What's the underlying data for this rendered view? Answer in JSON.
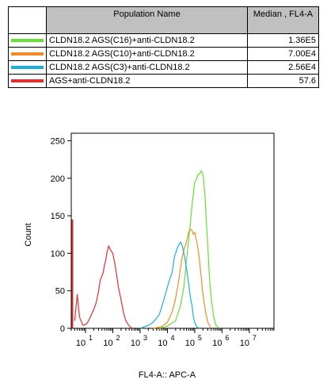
{
  "legend": {
    "header_name": "Population Name",
    "header_value": "Median , FL4-A",
    "rows": [
      {
        "name": "CLDN18.2 AGS(C16)+anti-CLDN18.2",
        "value": "1.36E5",
        "color": "#66e033"
      },
      {
        "name": "CLDN18.2 AGS(C10)+anti-CLDN18.2",
        "value": "7.00E4",
        "color": "#f28c28"
      },
      {
        "name": "CLDN18.2 AGS(C3)+anti-CLDN18.2",
        "value": "2.56E4",
        "color": "#1ab0dd"
      },
      {
        "name": "AGS+anti-CLDN18.2",
        "value": "57.6",
        "color": "#e03030"
      }
    ]
  },
  "chart_data": {
    "type": "line",
    "xlabel": "FL4-A:: APC-A",
    "ylabel": "Count",
    "xscale": "log",
    "xlim": [
      3,
      80000000
    ],
    "ylim": [
      0,
      260
    ],
    "yticks": [
      0,
      50,
      100,
      150,
      200,
      250
    ],
    "xticks": [
      {
        "base": "10",
        "exp": "1",
        "value": 10
      },
      {
        "base": "10",
        "exp": "2",
        "value": 100
      },
      {
        "base": "10",
        "exp": "3",
        "value": 1000
      },
      {
        "base": "10",
        "exp": "4",
        "value": 10000
      },
      {
        "base": "10",
        "exp": "5",
        "value": 100000
      },
      {
        "base": "10",
        "exp": "6",
        "value": 1000000
      },
      {
        "base": "10",
        "exp": "7",
        "value": 10000000
      }
    ],
    "series": [
      {
        "name": "CLDN18.2 AGS(C16)+anti-CLDN18.2",
        "color": "#66e033",
        "x": [
          5000,
          10000,
          20000,
          30000,
          40000,
          50000,
          60000,
          70000,
          80000,
          90000,
          100000,
          115000,
          130000,
          150000,
          170000,
          190000,
          210000,
          240000,
          260000,
          300000,
          350000,
          400000,
          500000,
          600000,
          800000
        ],
        "y": [
          0,
          3,
          10,
          30,
          55,
          90,
          118,
          142,
          165,
          180,
          195,
          198,
          205,
          205,
          210,
          208,
          200,
          175,
          150,
          110,
          65,
          40,
          15,
          4,
          0
        ]
      },
      {
        "name": "CLDN18.2 AGS(C10)+anti-CLDN18.2",
        "color": "#f28c28",
        "x": [
          3000,
          6000,
          10000,
          15000,
          20000,
          25000,
          30000,
          35000,
          40000,
          50000,
          60000,
          70000,
          80000,
          90000,
          100000,
          120000,
          140000,
          160000,
          200000,
          250000,
          300000,
          400000
        ],
        "y": [
          0,
          2,
          8,
          22,
          40,
          60,
          80,
          95,
          105,
          115,
          128,
          132,
          130,
          125,
          128,
          115,
          100,
          80,
          45,
          22,
          8,
          0
        ]
      },
      {
        "name": "CLDN18.2 AGS(C3)+anti-CLDN18.2",
        "color": "#1ab0dd",
        "x": [
          1000,
          2000,
          3000,
          5000,
          7000,
          10000,
          12000,
          15000,
          18000,
          22000,
          25000,
          30000,
          35000,
          40000,
          45000,
          50000,
          60000,
          70000,
          80000,
          90000,
          100000,
          120000,
          150000
        ],
        "y": [
          0,
          4,
          8,
          18,
          35,
          55,
          65,
          75,
          95,
          105,
          110,
          115,
          110,
          100,
          90,
          80,
          60,
          40,
          30,
          15,
          8,
          2,
          0
        ]
      },
      {
        "name": "AGS+anti-CLDN18.2",
        "color": "#e03030",
        "x": [
          4,
          5,
          6,
          8,
          10,
          12,
          15,
          20,
          25,
          30,
          35,
          40,
          45,
          50,
          55,
          60,
          70,
          80,
          100,
          120,
          140,
          160,
          200,
          250,
          300,
          400,
          500
        ],
        "y": [
          10,
          45,
          15,
          4,
          5,
          8,
          15,
          25,
          35,
          50,
          65,
          70,
          75,
          85,
          90,
          100,
          110,
          105,
          100,
          85,
          70,
          55,
          38,
          20,
          10,
          3,
          0
        ]
      }
    ]
  }
}
